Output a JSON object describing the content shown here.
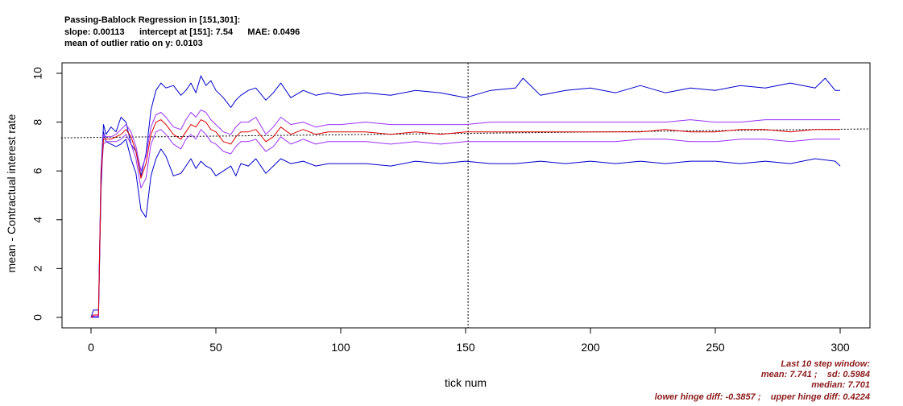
{
  "header": {
    "line1": "Passing-Bablock Regression in [151,301]:",
    "line2": "slope: 0.00113      intercept at [151]: 7.54      MAE: 0.0496",
    "line3": "mean of outlier ratio on y: 0.0103"
  },
  "stats": {
    "line1": "Last 10 step window:",
    "line2": "mean: 7.741 ;    sd: 0.5984",
    "line3": "median: 7.701",
    "line4": "lower hinge diff: -0.3857 ;    upper hinge diff: 0.4224"
  },
  "colors": {
    "outer": "#0000cc",
    "inner": "#9b30ff",
    "mean": "#dd0000",
    "ref": "#000000"
  },
  "chart_data": {
    "type": "line",
    "title": "",
    "xlabel": "tick num",
    "ylabel": "mean - Contractual interest rate",
    "xlim": [
      0,
      300
    ],
    "ylim": [
      0,
      10
    ],
    "xticks": [
      0,
      50,
      100,
      150,
      200,
      250,
      300
    ],
    "yticks": [
      0,
      2,
      4,
      6,
      8,
      10
    ],
    "vline_x": 151,
    "regression": {
      "x0": 151,
      "intercept": 7.54,
      "slope": 0.00113
    },
    "series": [
      {
        "role": "upper-outer",
        "x": [
          0,
          1,
          2,
          3,
          4,
          5,
          6,
          8,
          10,
          12,
          14,
          16,
          18,
          20,
          22,
          24,
          26,
          28,
          30,
          33,
          36,
          38,
          40,
          42,
          44,
          46,
          48,
          50,
          53,
          56,
          58,
          60,
          63,
          66,
          70,
          73,
          76,
          80,
          85,
          90,
          95,
          100,
          110,
          120,
          130,
          140,
          150,
          160,
          170,
          173,
          180,
          190,
          200,
          210,
          220,
          230,
          240,
          250,
          260,
          270,
          280,
          290,
          294,
          298,
          300
        ],
        "y": [
          0,
          0.3,
          0.3,
          0.3,
          6.0,
          7.9,
          7.5,
          7.8,
          7.6,
          8.2,
          8.0,
          7.1,
          6.8,
          5.8,
          6.7,
          8.5,
          9.3,
          9.6,
          9.4,
          9.5,
          9.1,
          9.3,
          9.6,
          9.2,
          9.9,
          9.5,
          9.7,
          9.3,
          9.0,
          8.6,
          8.9,
          9.1,
          9.3,
          9.4,
          8.9,
          9.2,
          9.6,
          9.0,
          9.3,
          9.1,
          9.2,
          9.1,
          9.2,
          9.1,
          9.3,
          9.2,
          9.0,
          9.3,
          9.4,
          9.8,
          9.1,
          9.3,
          9.4,
          9.2,
          9.5,
          9.2,
          9.4,
          9.3,
          9.5,
          9.4,
          9.6,
          9.4,
          9.8,
          9.3,
          9.3
        ]
      },
      {
        "role": "upper-inner",
        "x": [
          0,
          1,
          2,
          3,
          4,
          5,
          6,
          8,
          10,
          12,
          14,
          16,
          18,
          20,
          22,
          24,
          26,
          28,
          30,
          33,
          36,
          38,
          40,
          42,
          44,
          46,
          48,
          50,
          53,
          56,
          58,
          60,
          63,
          66,
          70,
          73,
          76,
          80,
          85,
          90,
          95,
          100,
          110,
          120,
          130,
          140,
          150,
          160,
          170,
          180,
          190,
          200,
          210,
          220,
          230,
          240,
          250,
          260,
          270,
          280,
          290,
          300
        ],
        "y": [
          0,
          0.1,
          0.1,
          0.1,
          5.9,
          7.5,
          7.4,
          7.4,
          7.5,
          7.7,
          7.9,
          7.6,
          7.0,
          6.0,
          6.6,
          7.8,
          8.3,
          8.4,
          8.2,
          7.8,
          7.7,
          8.1,
          8.4,
          8.2,
          8.5,
          8.4,
          8.1,
          7.9,
          7.6,
          7.5,
          7.8,
          8.0,
          8.0,
          8.2,
          7.5,
          7.8,
          8.2,
          7.9,
          8.0,
          7.8,
          7.9,
          7.9,
          8.0,
          7.9,
          7.9,
          7.9,
          7.9,
          8.0,
          8.0,
          8.0,
          8.0,
          8.0,
          8.0,
          8.0,
          8.0,
          8.1,
          8.0,
          8.0,
          8.1,
          8.1,
          8.1,
          8.1
        ]
      },
      {
        "role": "mean",
        "x": [
          0,
          1,
          2,
          3,
          4,
          5,
          6,
          8,
          10,
          12,
          14,
          16,
          18,
          20,
          22,
          24,
          26,
          28,
          30,
          33,
          36,
          38,
          40,
          42,
          44,
          46,
          48,
          50,
          53,
          56,
          58,
          60,
          63,
          66,
          70,
          73,
          76,
          80,
          85,
          90,
          95,
          100,
          110,
          120,
          130,
          140,
          150,
          160,
          170,
          180,
          190,
          200,
          210,
          220,
          230,
          240,
          250,
          260,
          270,
          280,
          290,
          300
        ],
        "y": [
          0,
          0.1,
          0.1,
          0.1,
          5.8,
          7.3,
          7.3,
          7.3,
          7.4,
          7.5,
          7.7,
          7.4,
          6.8,
          5.7,
          6.3,
          7.5,
          8.0,
          8.1,
          7.9,
          7.5,
          7.3,
          7.6,
          7.9,
          7.8,
          8.1,
          8.0,
          7.7,
          7.6,
          7.2,
          7.1,
          7.4,
          7.6,
          7.6,
          7.7,
          7.2,
          7.4,
          7.8,
          7.5,
          7.7,
          7.5,
          7.6,
          7.6,
          7.6,
          7.5,
          7.6,
          7.5,
          7.6,
          7.6,
          7.6,
          7.6,
          7.6,
          7.6,
          7.6,
          7.6,
          7.7,
          7.6,
          7.6,
          7.7,
          7.7,
          7.6,
          7.7,
          7.7
        ]
      },
      {
        "role": "lower-inner",
        "x": [
          0,
          1,
          2,
          3,
          4,
          5,
          6,
          8,
          10,
          12,
          14,
          16,
          18,
          20,
          22,
          24,
          26,
          28,
          30,
          33,
          36,
          38,
          40,
          42,
          44,
          46,
          48,
          50,
          53,
          56,
          58,
          60,
          63,
          66,
          70,
          73,
          76,
          80,
          85,
          90,
          95,
          100,
          110,
          120,
          130,
          140,
          150,
          160,
          170,
          180,
          190,
          200,
          210,
          220,
          230,
          240,
          250,
          260,
          270,
          280,
          290,
          300
        ],
        "y": [
          0,
          0.05,
          0.05,
          0.05,
          5.7,
          7.1,
          7.2,
          7.2,
          7.2,
          7.3,
          7.5,
          7.1,
          6.5,
          5.3,
          5.7,
          7.1,
          7.6,
          7.7,
          7.5,
          7.1,
          6.9,
          7.3,
          7.5,
          7.3,
          7.7,
          7.5,
          7.2,
          7.1,
          6.8,
          6.7,
          7.0,
          7.2,
          7.2,
          7.3,
          6.8,
          7.0,
          7.4,
          7.1,
          7.3,
          7.1,
          7.2,
          7.2,
          7.2,
          7.1,
          7.2,
          7.1,
          7.2,
          7.2,
          7.2,
          7.2,
          7.2,
          7.2,
          7.2,
          7.3,
          7.3,
          7.2,
          7.2,
          7.3,
          7.3,
          7.2,
          7.3,
          7.3
        ]
      },
      {
        "role": "lower-outer",
        "x": [
          0,
          1,
          2,
          3,
          4,
          5,
          6,
          8,
          10,
          12,
          14,
          16,
          18,
          20,
          22,
          24,
          26,
          28,
          30,
          33,
          36,
          38,
          40,
          42,
          44,
          46,
          48,
          50,
          53,
          56,
          58,
          60,
          63,
          66,
          70,
          73,
          76,
          80,
          85,
          90,
          95,
          100,
          110,
          120,
          130,
          140,
          150,
          160,
          170,
          180,
          190,
          200,
          210,
          220,
          230,
          240,
          250,
          260,
          270,
          280,
          290,
          298,
          300
        ],
        "y": [
          0,
          0,
          0,
          0,
          5.2,
          7.6,
          7.2,
          7.1,
          7.0,
          7.1,
          7.3,
          6.5,
          5.9,
          4.4,
          4.1,
          5.8,
          6.5,
          6.9,
          6.6,
          5.8,
          5.9,
          6.2,
          6.5,
          6.1,
          6.4,
          6.2,
          6.1,
          5.8,
          6.0,
          6.2,
          5.8,
          6.3,
          6.2,
          6.5,
          5.9,
          6.2,
          6.5,
          6.3,
          6.4,
          6.2,
          6.3,
          6.3,
          6.3,
          6.2,
          6.4,
          6.3,
          6.4,
          6.3,
          6.3,
          6.4,
          6.3,
          6.4,
          6.3,
          6.4,
          6.3,
          6.4,
          6.4,
          6.3,
          6.4,
          6.3,
          6.5,
          6.4,
          6.2
        ]
      }
    ]
  }
}
